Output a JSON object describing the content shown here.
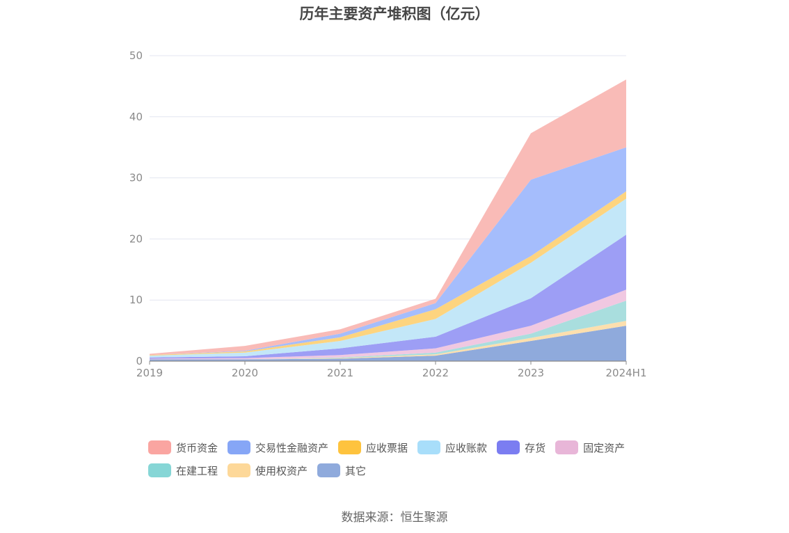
{
  "chart_data": {
    "type": "area",
    "stacked": true,
    "title": "历年主要资产堆积图（亿元）",
    "categories": [
      "2019",
      "2020",
      "2021",
      "2022",
      "2023",
      "2024H1"
    ],
    "ylim": [
      0,
      50
    ],
    "yticks": [
      0,
      10,
      20,
      30,
      40,
      50
    ],
    "grid": true,
    "legend_position": "bottom",
    "series": [
      {
        "name": "其它",
        "color": "#8faadc",
        "legend_color": "#8faadc",
        "values": [
          0.3,
          0.3,
          0.4,
          0.9,
          3.3,
          5.8
        ]
      },
      {
        "name": "使用权资产",
        "color": "#fcdfae",
        "legend_color": "#fdd899",
        "values": [
          0.0,
          0.0,
          0.1,
          0.2,
          0.5,
          0.8
        ]
      },
      {
        "name": "在建工程",
        "color": "#a9dede",
        "legend_color": "#86d6d6",
        "values": [
          0.0,
          0.0,
          0.1,
          0.3,
          0.7,
          3.3
        ]
      },
      {
        "name": "固定资产",
        "color": "#f0c8e1",
        "legend_color": "#e8b6d8",
        "values": [
          0.1,
          0.2,
          0.4,
          0.7,
          1.3,
          1.8
        ]
      },
      {
        "name": "存货",
        "color": "#9d9ef5",
        "legend_color": "#7b7df1",
        "values": [
          0.2,
          0.3,
          1.1,
          1.9,
          4.5,
          9.0
        ]
      },
      {
        "name": "应收账款",
        "color": "#c3e7f8",
        "legend_color": "#a8defa",
        "values": [
          0.3,
          0.6,
          1.2,
          2.9,
          5.8,
          5.9
        ]
      },
      {
        "name": "应收票据",
        "color": "#fdd47f",
        "legend_color": "#fec33e",
        "values": [
          0.1,
          0.2,
          0.6,
          1.6,
          1.1,
          1.2
        ]
      },
      {
        "name": "交易性金融资产",
        "color": "#a5bdfc",
        "legend_color": "#86a6f6",
        "values": [
          0.0,
          0.1,
          0.6,
          1.0,
          12.5,
          7.2
        ]
      },
      {
        "name": "货币资金",
        "color": "#f9bbb7",
        "legend_color": "#faa5a1",
        "values": [
          0.2,
          0.8,
          0.7,
          0.7,
          7.6,
          11.1
        ]
      }
    ]
  },
  "legend_order": [
    "货币资金",
    "交易性金融资产",
    "应收票据",
    "应收账款",
    "存货",
    "固定资产",
    "在建工程",
    "使用权资产",
    "其它"
  ],
  "source": "数据来源：恒生聚源"
}
